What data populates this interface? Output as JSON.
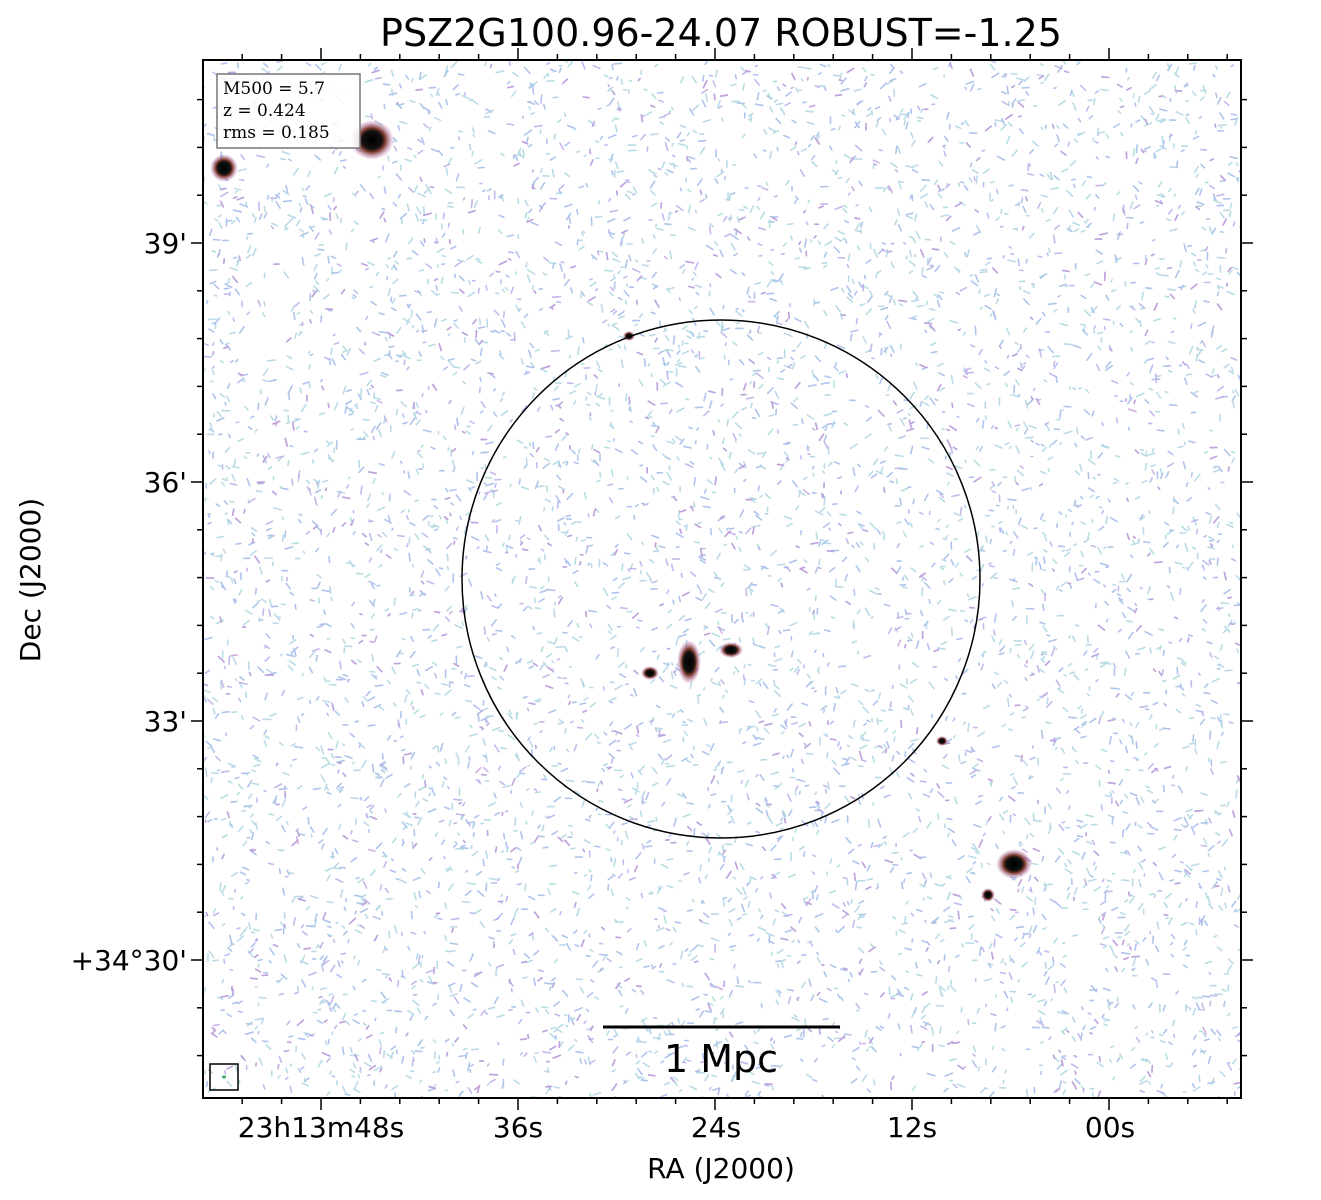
{
  "title": "PSZ2G100.96-24.07 ROBUST=-1.25",
  "x_axis": {
    "label": "RA (J2000)",
    "ticks": [
      "23h13m48s",
      "36s",
      "24s",
      "12s",
      "00s"
    ]
  },
  "y_axis": {
    "label": "Dec (J2000)",
    "ticks": [
      "39'",
      "36'",
      "33'",
      "+34°30'"
    ]
  },
  "info_box": {
    "lines": [
      "M500 = 5.7",
      "z = 0.424",
      "rms = 0.185"
    ]
  },
  "scale_bar": {
    "label": "1 Mpc"
  }
}
